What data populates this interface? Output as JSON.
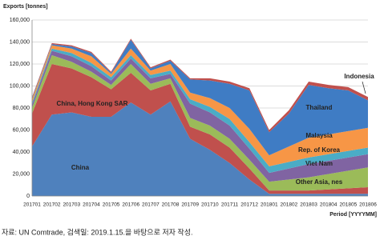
{
  "chart_data": {
    "type": "stacked-area",
    "y_label": "Exports [tonnes]",
    "x_label": "Period [YYYYMM]",
    "source": "자료: UN Comtrade, 검색일: 2019.1.15.을 바탕으로 저자 작성.",
    "categories": [
      "201701",
      "201702",
      "201703",
      "201704",
      "201705",
      "201706",
      "201707",
      "201708",
      "201709",
      "201710",
      "201711",
      "201712",
      "201801",
      "201802",
      "201803",
      "201804",
      "201805",
      "201806"
    ],
    "series": [
      {
        "name": "China",
        "color": "#4f81bd",
        "values": [
          45000,
          74000,
          76000,
          72000,
          72000,
          85000,
          74000,
          86000,
          52000,
          42000,
          30000,
          15000,
          2000,
          2000,
          2000,
          2000,
          2000,
          2000
        ]
      },
      {
        "name": "China, Hong Kong SAR",
        "color": "#c0504d",
        "values": [
          30000,
          46000,
          40000,
          36000,
          25000,
          27000,
          22000,
          16000,
          11000,
          14000,
          14000,
          10000,
          3000,
          3000,
          3000,
          4000,
          5000,
          6000
        ]
      },
      {
        "name": "Other Asia, nes",
        "color": "#9bbb59",
        "values": [
          5000,
          8000,
          6000,
          5000,
          4000,
          8000,
          6000,
          5000,
          8000,
          8000,
          8000,
          8000,
          8000,
          10000,
          12000,
          14000,
          16000,
          18000
        ]
      },
      {
        "name": "Viet Nam",
        "color": "#8064a2",
        "values": [
          3000,
          4000,
          5000,
          5000,
          4000,
          5000,
          5000,
          4000,
          13000,
          12000,
          12000,
          10000,
          8000,
          10000,
          12000,
          12000,
          12000,
          12000
        ]
      },
      {
        "name": "Rep. of Korea",
        "color": "#4bacc6",
        "values": [
          2000,
          2000,
          3000,
          3000,
          3000,
          3000,
          3000,
          3000,
          4000,
          5000,
          6000,
          6000,
          6000,
          6000,
          6000,
          6000,
          6000,
          6000
        ]
      },
      {
        "name": "Malaysia",
        "color": "#f79646",
        "values": [
          3000,
          3000,
          4000,
          6000,
          3000,
          6000,
          4000,
          6000,
          6000,
          8000,
          10000,
          12000,
          10000,
          14000,
          18000,
          18000,
          18000,
          18000
        ]
      },
      {
        "name": "Thailand",
        "color": "#3f7cc4",
        "values": [
          1000,
          1000,
          2000,
          3000,
          1000,
          8000,
          2000,
          3000,
          12000,
          16000,
          22000,
          35000,
          21000,
          30000,
          48000,
          42000,
          37000,
          25000
        ]
      },
      {
        "name": "Indonesia",
        "color": "#c0504d",
        "values": [
          1000,
          1000,
          1000,
          1000,
          1000,
          1000,
          1000,
          1000,
          1000,
          2000,
          2000,
          2000,
          2000,
          3000,
          3000,
          3000,
          3000,
          3000
        ]
      }
    ],
    "ylim": [
      0,
      160000
    ],
    "yticks": [
      0,
      {
        "value": 20000,
        "label": "20,000"
      },
      {
        "value": 40000,
        "label": "40,000"
      },
      {
        "value": 60000,
        "label": "60,000"
      },
      {
        "value": 80000,
        "label": "80,000"
      },
      {
        "value": 100000,
        "label": "100,000"
      },
      {
        "value": 120000,
        "label": "120,000"
      },
      {
        "value": 140000,
        "label": "140,000"
      },
      {
        "value": 160000,
        "label": "160,000"
      }
    ],
    "grid": true
  }
}
